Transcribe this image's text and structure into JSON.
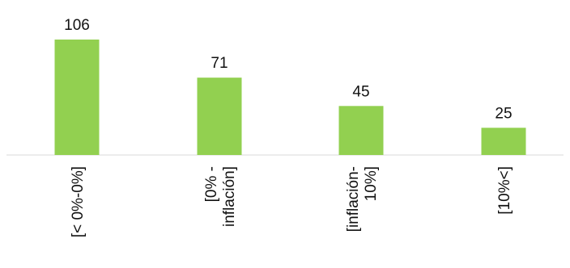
{
  "chart_data": {
    "type": "bar",
    "title": "",
    "xlabel": "",
    "ylabel": "",
    "categories": [
      [
        "[< 0%-0%]"
      ],
      [
        "[0% -",
        "inflación]"
      ],
      [
        "[inflación-",
        "10%]"
      ],
      [
        "[10%<]"
      ]
    ],
    "values": [
      106,
      71,
      45,
      25
    ],
    "ylim": [
      0,
      106
    ],
    "grid": false,
    "legend": "none",
    "bar_color": "#92d050",
    "axis_color": "#d9d9d9",
    "label_rotation": "vertical"
  }
}
